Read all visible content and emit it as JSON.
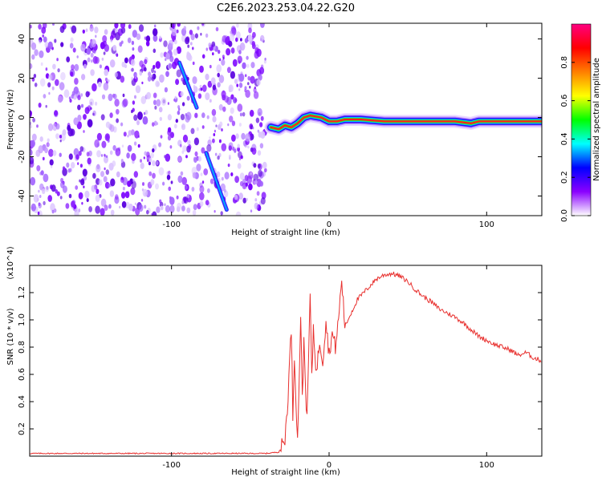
{
  "chart_data": [
    {
      "type": "heatmap",
      "title": "C2E6.2023.253.04.22.G20",
      "xlabel": "Height of straight line (km)",
      "ylabel": "Frequency (Hz)",
      "xlim": [
        -190,
        135
      ],
      "ylim": [
        -50,
        48
      ],
      "x_ticks": [
        -100,
        0,
        100
      ],
      "y_ticks": [
        -40,
        -20,
        0,
        20,
        40
      ],
      "noise_region": {
        "x": [
          -190,
          -40
        ],
        "y": [
          -50,
          48
        ]
      },
      "trace": [
        {
          "x": -37,
          "y": -5
        },
        {
          "x": -32,
          "y": -6
        },
        {
          "x": -28,
          "y": -4
        },
        {
          "x": -24,
          "y": -5
        },
        {
          "x": -20,
          "y": -3
        },
        {
          "x": -16,
          "y": 0
        },
        {
          "x": -12,
          "y": 1
        },
        {
          "x": -5,
          "y": 0
        },
        {
          "x": 0,
          "y": -2
        },
        {
          "x": 5,
          "y": -2
        },
        {
          "x": 10,
          "y": -1
        },
        {
          "x": 20,
          "y": -1
        },
        {
          "x": 35,
          "y": -2
        },
        {
          "x": 60,
          "y": -2
        },
        {
          "x": 80,
          "y": -2
        },
        {
          "x": 90,
          "y": -3
        },
        {
          "x": 95,
          "y": -2
        },
        {
          "x": 110,
          "y": -2
        },
        {
          "x": 135,
          "y": -2
        }
      ],
      "streaks": [
        [
          {
            "x": -95,
            "y": 28
          },
          {
            "x": -84,
            "y": 5
          }
        ],
        [
          {
            "x": -78,
            "y": -18
          },
          {
            "x": -65,
            "y": -47
          }
        ]
      ],
      "colorbar": {
        "label": "Normalized spectral amplitude",
        "range": [
          0,
          1
        ],
        "ticks": [
          "0.0",
          "0.2",
          "0.4",
          "0.6",
          "0.8"
        ],
        "colors": [
          "#ffffff",
          "#8b00ff",
          "#0000ff",
          "#00ffff",
          "#00ff00",
          "#ffff00",
          "#ff7f00",
          "#ff0000",
          "#ff0080"
        ]
      }
    },
    {
      "type": "line",
      "xlabel": "Height of straight line (km)",
      "ylabel": "SNR (10 * v/v)",
      "multiplier": "(x10^4)",
      "xlim": [
        -190,
        135
      ],
      "ylim": [
        0,
        1.4
      ],
      "x_ticks": [
        -100,
        0,
        100
      ],
      "y_ticks": [
        "0.2",
        "0.4",
        "0.6",
        "0.8",
        "1.0",
        "1.2"
      ],
      "color": "#e8302e",
      "series": [
        {
          "points": [
            [
              -190,
              0.02
            ],
            [
              -160,
              0.02
            ],
            [
              -130,
              0.02
            ],
            [
              -100,
              0.02
            ],
            [
              -70,
              0.02
            ],
            [
              -40,
              0.02
            ],
            [
              -32,
              0.03
            ],
            [
              -28,
              0.12
            ],
            [
              -26,
              0.45
            ],
            [
              -24,
              0.95
            ],
            [
              -23,
              0.3
            ],
            [
              -22,
              0.75
            ],
            [
              -20,
              0.1
            ],
            [
              -18,
              1.05
            ],
            [
              -17,
              0.4
            ],
            [
              -16,
              0.85
            ],
            [
              -14,
              0.25
            ],
            [
              -12,
              1.2
            ],
            [
              -11,
              0.55
            ],
            [
              -10,
              0.95
            ],
            [
              -8,
              0.6
            ],
            [
              -6,
              0.85
            ],
            [
              -4,
              0.7
            ],
            [
              -2,
              1.0
            ],
            [
              0,
              0.75
            ],
            [
              2,
              0.9
            ],
            [
              4,
              0.8
            ],
            [
              6,
              1.0
            ],
            [
              8,
              1.3
            ],
            [
              10,
              0.95
            ],
            [
              14,
              1.05
            ],
            [
              18,
              1.15
            ],
            [
              22,
              1.2
            ],
            [
              26,
              1.25
            ],
            [
              30,
              1.3
            ],
            [
              35,
              1.33
            ],
            [
              40,
              1.34
            ],
            [
              45,
              1.32
            ],
            [
              50,
              1.28
            ],
            [
              55,
              1.22
            ],
            [
              60,
              1.17
            ],
            [
              65,
              1.13
            ],
            [
              70,
              1.08
            ],
            [
              75,
              1.05
            ],
            [
              80,
              1.02
            ],
            [
              85,
              0.98
            ],
            [
              90,
              0.93
            ],
            [
              95,
              0.88
            ],
            [
              100,
              0.85
            ],
            [
              105,
              0.82
            ],
            [
              110,
              0.8
            ],
            [
              115,
              0.78
            ],
            [
              120,
              0.74
            ],
            [
              125,
              0.76
            ],
            [
              130,
              0.72
            ],
            [
              135,
              0.7
            ]
          ]
        }
      ]
    }
  ]
}
